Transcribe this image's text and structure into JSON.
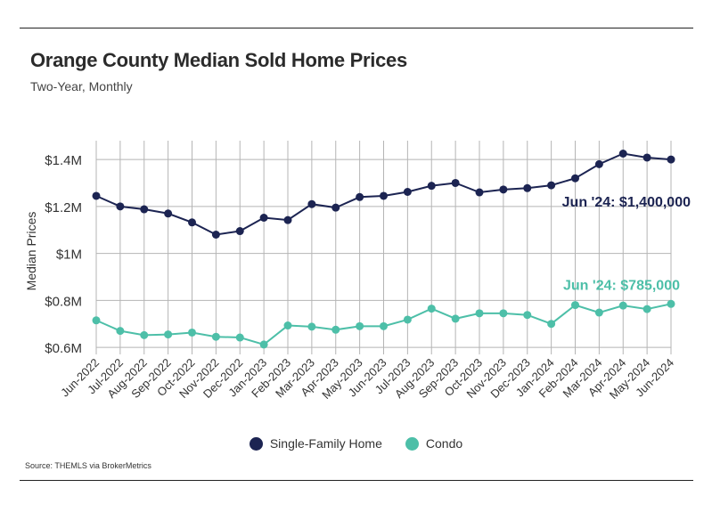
{
  "header": {
    "title": "Orange County Median Sold Home Prices",
    "subtitle": "Two-Year, Monthly"
  },
  "footer": {
    "source": "Source:  THEMLS via BrokerMetrics"
  },
  "colors": {
    "single_family": "#1c2452",
    "condo": "#4dbfa8",
    "grid": "#b5b5b5",
    "axis_text": "#333333"
  },
  "chart_data": {
    "type": "line",
    "title": "Orange County Median Sold Home Prices",
    "subtitle": "Two-Year, Monthly",
    "xlabel": "",
    "ylabel": "Median Prices",
    "ylim": [
      570000,
      1480000
    ],
    "yticks": [
      600000,
      800000,
      1000000,
      1200000,
      1400000
    ],
    "ytick_labels": [
      "$0.6M",
      "$0.8M",
      "$1M",
      "$1.2M",
      "$1.4M"
    ],
    "grid": true,
    "legend_position": "bottom-center",
    "categories": [
      "Jun-2022",
      "Jul-2022",
      "Aug-2022",
      "Sep-2022",
      "Oct-2022",
      "Nov-2022",
      "Dec-2022",
      "Jan-2023",
      "Feb-2023",
      "Mar-2023",
      "Apr-2023",
      "May-2023",
      "Jun-2023",
      "Jul-2023",
      "Aug-2023",
      "Sep-2023",
      "Oct-2023",
      "Nov-2023",
      "Dec-2023",
      "Jan-2024",
      "Feb-2024",
      "Mar-2024",
      "Apr-2024",
      "May-2024",
      "Jun-2024"
    ],
    "series": [
      {
        "name": "Single-Family Home",
        "values": [
          1245000,
          1200000,
          1188000,
          1170000,
          1132000,
          1080000,
          1095000,
          1152000,
          1142000,
          1210000,
          1195000,
          1240000,
          1245000,
          1262000,
          1288000,
          1300000,
          1260000,
          1272000,
          1278000,
          1290000,
          1320000,
          1380000,
          1425000,
          1408000,
          1400000
        ],
        "annotation": "Jun '24: $1,400,000"
      },
      {
        "name": "Condo",
        "values": [
          715000,
          670000,
          652000,
          655000,
          663000,
          645000,
          642000,
          612000,
          693000,
          688000,
          675000,
          690000,
          690000,
          718000,
          765000,
          722000,
          745000,
          745000,
          738000,
          700000,
          780000,
          748000,
          778000,
          763000,
          785000
        ],
        "annotation": "Jun '24: $785,000"
      }
    ]
  }
}
